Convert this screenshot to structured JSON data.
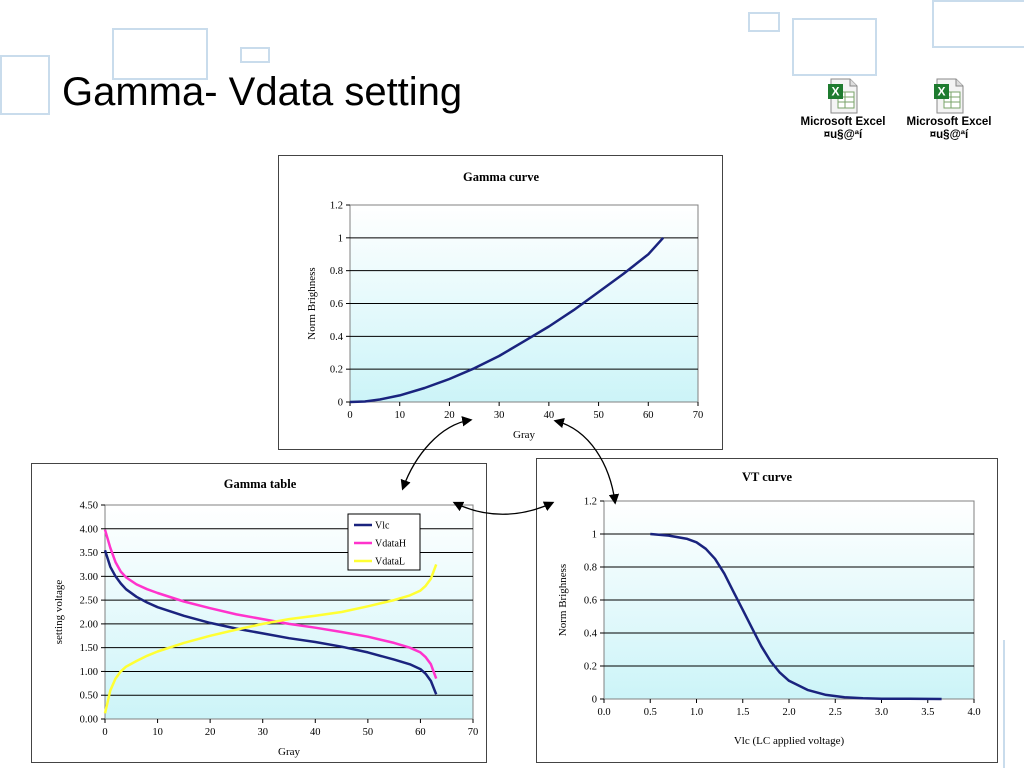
{
  "slide": {
    "title": "Gamma- Vdata setting",
    "accent_color": "#c9dcec"
  },
  "attachments": [
    {
      "icon": "excel-file-icon",
      "label_line1": "Microsoft Excel",
      "label_line2": "¤u§@ªí"
    },
    {
      "icon": "excel-file-icon",
      "label_line1": "Microsoft Excel",
      "label_line2": "¤u§@ªí"
    }
  ],
  "chart_data": [
    {
      "id": "gamma_curve",
      "type": "line",
      "title": "Gamma curve",
      "xlabel": "Gray",
      "ylabel": "Norm Brighness",
      "xlim": [
        0,
        70
      ],
      "ylim": [
        0,
        1.2
      ],
      "xticks": [
        "0",
        "10",
        "20",
        "30",
        "40",
        "50",
        "60",
        "70"
      ],
      "yticks": [
        "0",
        "0.2",
        "0.4",
        "0.6",
        "0.8",
        "1",
        "1.2"
      ],
      "grid": "horizontal",
      "plot_background": "gradient light cyan",
      "series": [
        {
          "color": "#1a237e",
          "x": [
            0,
            3,
            6,
            10,
            15,
            20,
            25,
            30,
            35,
            40,
            45,
            50,
            55,
            60,
            63
          ],
          "y": [
            0,
            0.003,
            0.015,
            0.04,
            0.085,
            0.14,
            0.205,
            0.28,
            0.37,
            0.46,
            0.56,
            0.67,
            0.78,
            0.9,
            1.0
          ]
        }
      ]
    },
    {
      "id": "gamma_table",
      "type": "line",
      "title": "Gamma table",
      "xlabel": "Gray",
      "ylabel": "setting voltage",
      "xlim": [
        0,
        70
      ],
      "ylim": [
        0,
        4.5
      ],
      "xticks": [
        "0",
        "10",
        "20",
        "30",
        "40",
        "50",
        "60",
        "70"
      ],
      "yticks": [
        "0.00",
        "0.50",
        "1.00",
        "1.50",
        "2.00",
        "2.50",
        "3.00",
        "3.50",
        "4.00",
        "4.50"
      ],
      "grid": "horizontal",
      "legend": "top-right",
      "series": [
        {
          "name": "Vlc",
          "color": "#1a237e",
          "x": [
            0,
            1,
            2,
            3,
            4,
            6,
            8,
            10,
            15,
            20,
            25,
            30,
            35,
            40,
            45,
            50,
            55,
            58,
            60,
            61,
            62,
            63
          ],
          "y": [
            3.55,
            3.2,
            3.0,
            2.85,
            2.73,
            2.57,
            2.45,
            2.35,
            2.17,
            2.02,
            1.9,
            1.8,
            1.7,
            1.62,
            1.52,
            1.4,
            1.25,
            1.15,
            1.05,
            0.95,
            0.8,
            0.52
          ]
        },
        {
          "name": "VdataH",
          "color": "#ff33cc",
          "x": [
            0,
            1,
            2,
            3,
            4,
            6,
            8,
            10,
            15,
            20,
            25,
            30,
            35,
            40,
            45,
            50,
            55,
            58,
            60,
            61,
            62,
            63
          ],
          "y": [
            3.98,
            3.6,
            3.3,
            3.1,
            2.98,
            2.83,
            2.73,
            2.65,
            2.47,
            2.33,
            2.2,
            2.1,
            2.0,
            1.92,
            1.83,
            1.73,
            1.6,
            1.5,
            1.4,
            1.3,
            1.15,
            0.85
          ]
        },
        {
          "name": "VdataL",
          "color": "#ffff33",
          "x": [
            0,
            1,
            2,
            3,
            4,
            6,
            8,
            10,
            15,
            20,
            25,
            30,
            35,
            40,
            45,
            50,
            55,
            58,
            60,
            61,
            62,
            63
          ],
          "y": [
            0.12,
            0.6,
            0.85,
            1.0,
            1.1,
            1.22,
            1.33,
            1.42,
            1.6,
            1.75,
            1.88,
            2.0,
            2.1,
            2.17,
            2.25,
            2.37,
            2.5,
            2.6,
            2.7,
            2.8,
            2.95,
            3.25
          ]
        }
      ]
    },
    {
      "id": "vt_curve",
      "type": "line",
      "title": "VT curve",
      "xlabel": "Vlc (LC applied voltage)",
      "ylabel": "Norm Brighness",
      "xlim": [
        0,
        4.0
      ],
      "ylim": [
        0,
        1.2
      ],
      "xticks": [
        "0.0",
        "0.5",
        "1.0",
        "1.5",
        "2.0",
        "2.5",
        "3.0",
        "3.5",
        "4.0"
      ],
      "yticks": [
        "0",
        "0.2",
        "0.4",
        "0.6",
        "0.8",
        "1",
        "1.2"
      ],
      "grid": "horizontal",
      "series": [
        {
          "color": "#1a237e",
          "x": [
            0.5,
            0.7,
            0.9,
            1.0,
            1.1,
            1.2,
            1.3,
            1.4,
            1.5,
            1.6,
            1.7,
            1.8,
            1.9,
            2.0,
            2.2,
            2.4,
            2.6,
            2.8,
            3.0,
            3.3,
            3.65
          ],
          "y": [
            1.0,
            0.99,
            0.97,
            0.95,
            0.91,
            0.85,
            0.76,
            0.65,
            0.54,
            0.43,
            0.32,
            0.23,
            0.16,
            0.11,
            0.055,
            0.025,
            0.01,
            0.004,
            0.002,
            0.001,
            0.0
          ]
        }
      ]
    }
  ]
}
